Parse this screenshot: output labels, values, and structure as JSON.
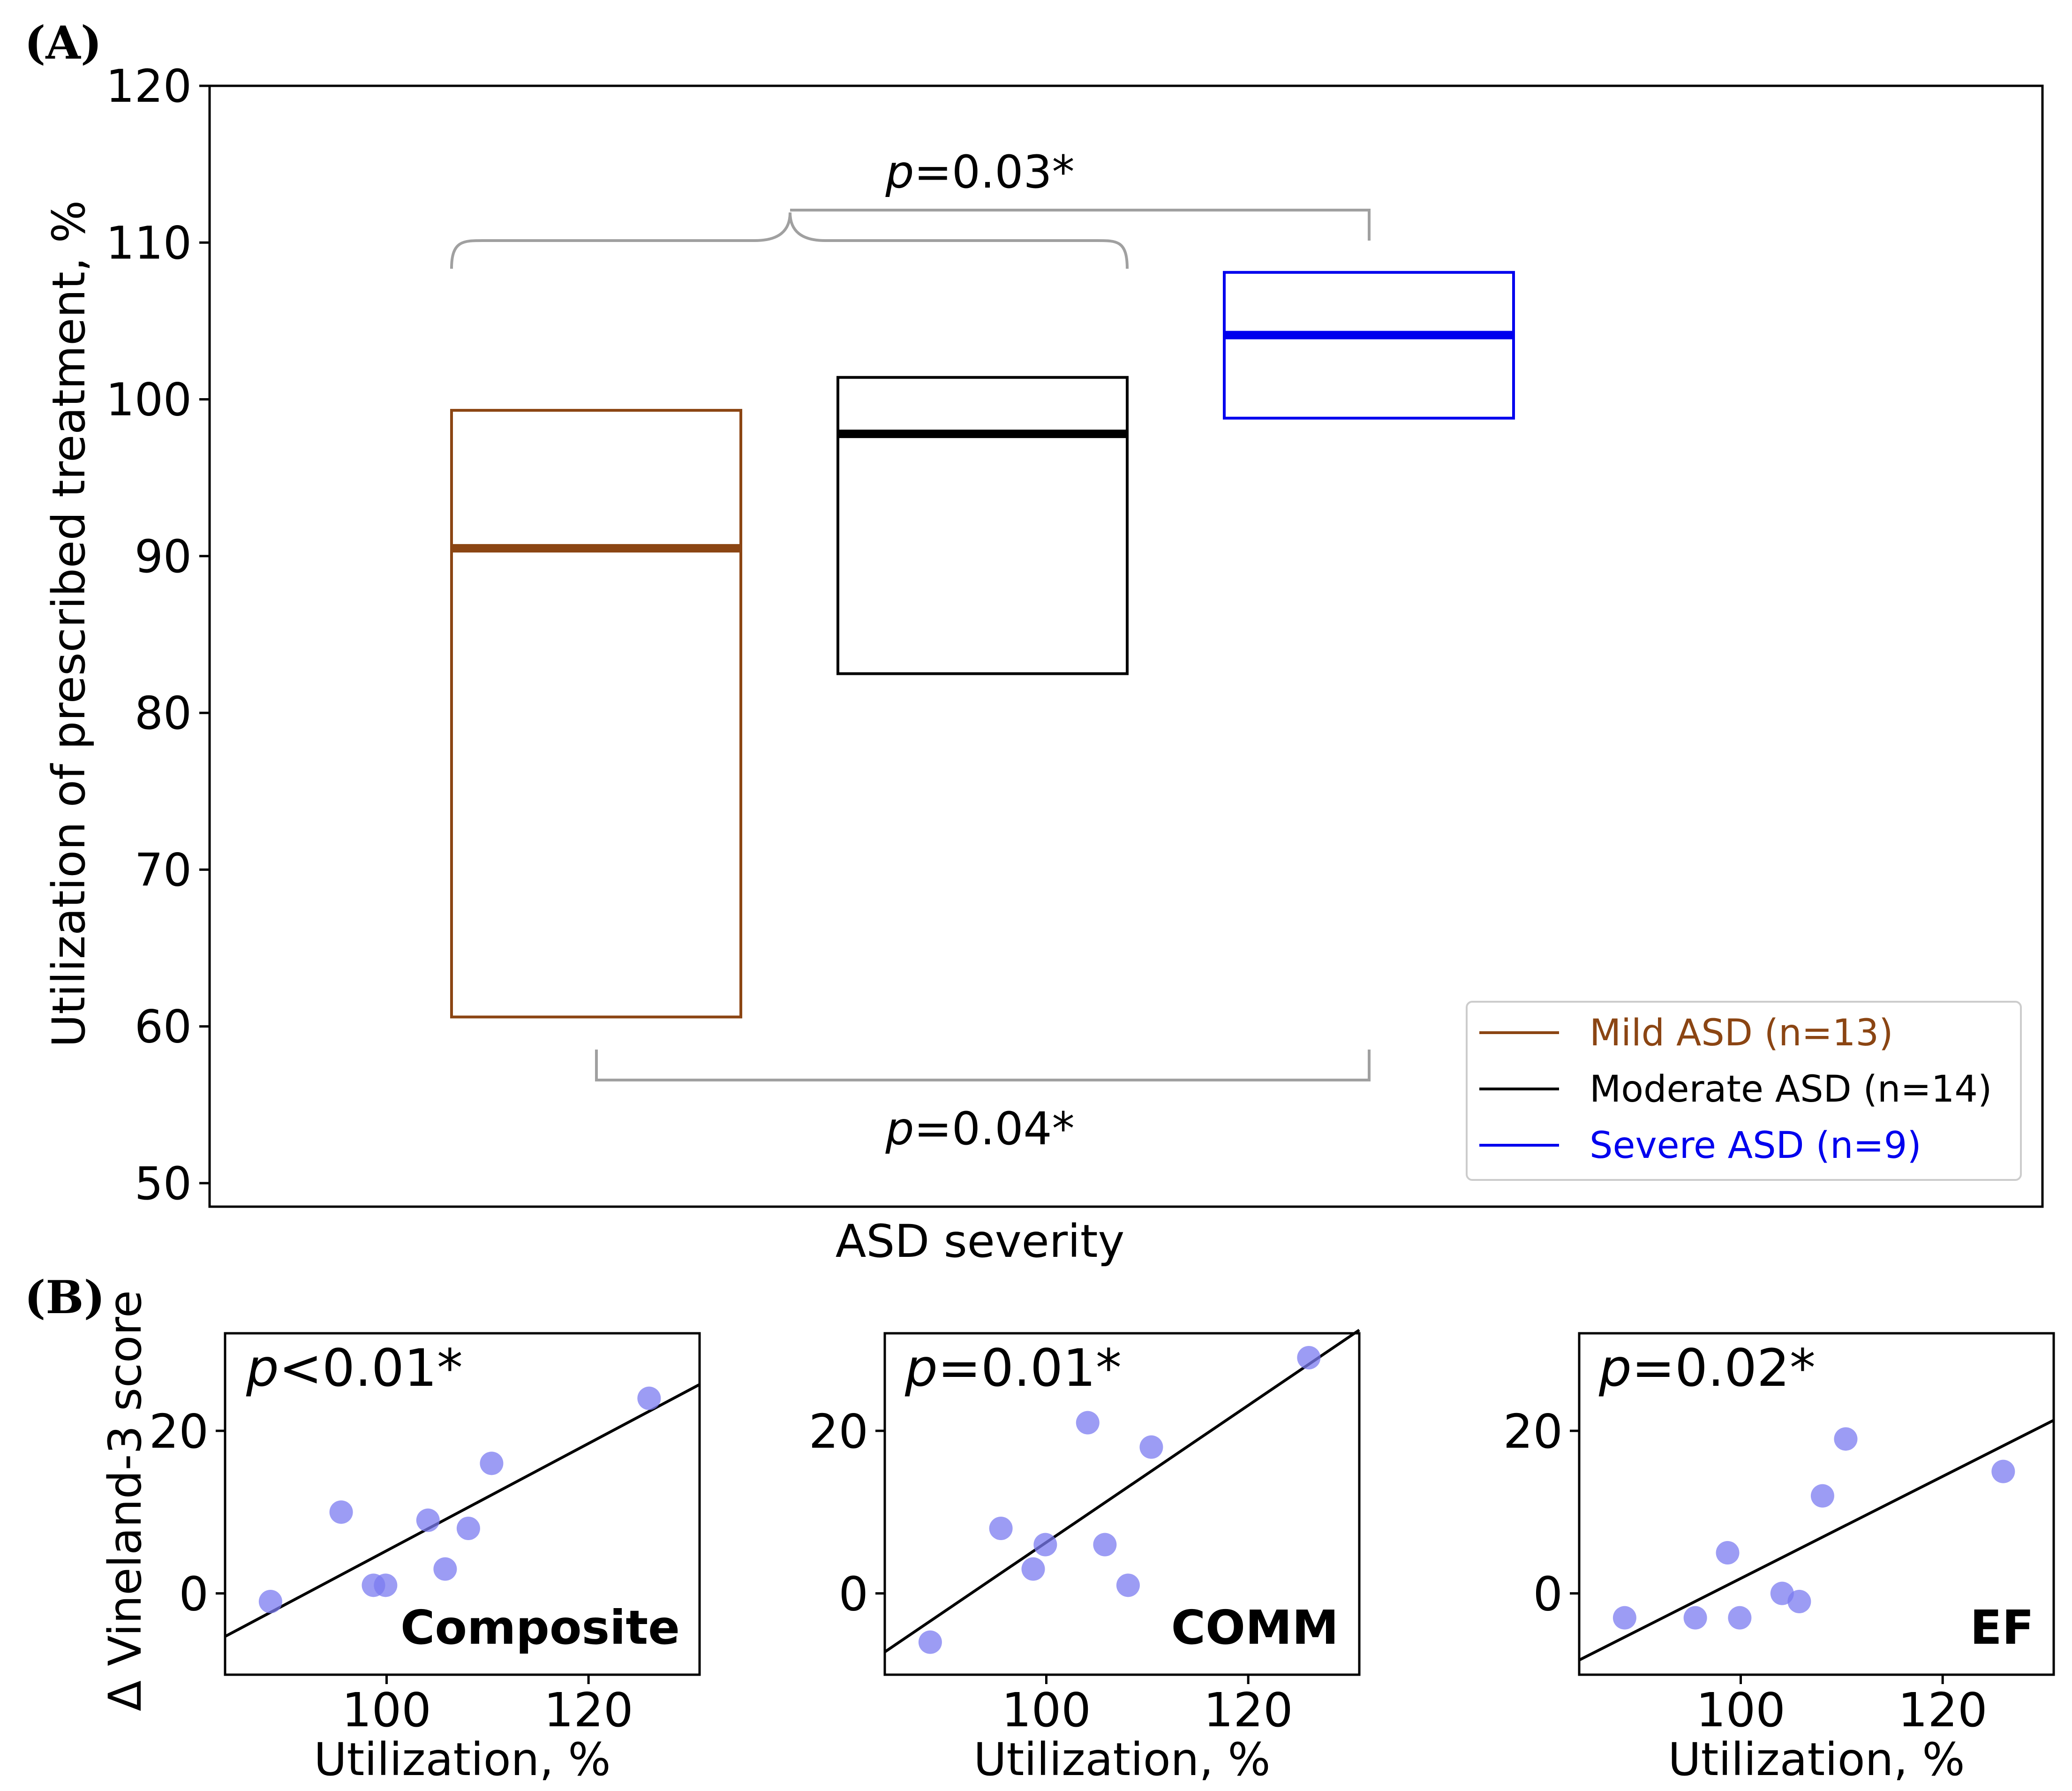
{
  "panel_a_label": "(A)",
  "panel_b_label": "(B)",
  "colors": {
    "mild": "#8B4513",
    "moderate": "#000000",
    "severe": "#0000EE",
    "bracket": "#A0A0A0",
    "scatter": "#7B7BF0"
  },
  "chart_data": [
    {
      "type": "box",
      "title": "",
      "xlabel": "ASD severity",
      "ylabel": "Utilization of prescribed treatment, %",
      "ylim": [
        48.5,
        120
      ],
      "yticks": [
        "120",
        "110",
        "100",
        "90",
        "80",
        "70",
        "60",
        "50"
      ],
      "ytick_values": [
        120,
        110,
        100,
        90,
        80,
        70,
        60,
        50
      ],
      "groups": [
        {
          "name": "Mild ASD (n=13)",
          "q1": 60.6,
          "median": 90.5,
          "q3": 99.3,
          "color_key": "mild"
        },
        {
          "name": "Moderate ASD (n=14)",
          "q1": 82.5,
          "median": 97.8,
          "q3": 101.4,
          "color_key": "moderate"
        },
        {
          "name": "Severe ASD (n=9)",
          "q1": 98.8,
          "median": 104.1,
          "q3": 108.1,
          "color_key": "severe"
        }
      ],
      "annotations": [
        {
          "p_label": "p",
          "p_value": "=0.03*",
          "compares": "Mild+Moderate vs Severe",
          "placement": "top"
        },
        {
          "p_label": "p",
          "p_value": "=0.04*",
          "compares": "Mild vs Severe",
          "placement": "bottom"
        }
      ],
      "legend": {
        "placement": "lower-right",
        "entries": [
          "Mild ASD (n=13)",
          "Moderate ASD (n=14)",
          "Severe ASD (n=9)"
        ]
      }
    },
    {
      "type": "scatter",
      "label": "Composite",
      "p_label": "p",
      "p_value": "<0.01*",
      "xlabel": "Utilization, %",
      "ylabel": "Δ Vineland-3 score",
      "xlim": [
        84,
        131
      ],
      "ylim": [
        -10,
        32
      ],
      "xticks": [
        "100",
        "120"
      ],
      "xtick_values": [
        100,
        120
      ],
      "yticks": [
        "20",
        "0"
      ],
      "ytick_values": [
        20,
        0
      ],
      "x": [
        88.5,
        95.5,
        98.7,
        99.9,
        104.1,
        105.8,
        108.1,
        110.4,
        126
      ],
      "y": [
        -1,
        10,
        1,
        1,
        9,
        3,
        8,
        16,
        24
      ],
      "fit": {
        "x0": 84,
        "y0": -5.3,
        "x1": 131,
        "y1": 25.7
      }
    },
    {
      "type": "scatter",
      "label": "COMM",
      "p_label": "p",
      "p_value": "=0.01*",
      "xlabel": "Utilization, %",
      "ylabel": "",
      "xlim": [
        84,
        131
      ],
      "ylim": [
        -10,
        32
      ],
      "xticks": [
        "100",
        "120"
      ],
      "xtick_values": [
        100,
        120
      ],
      "yticks": [
        "20",
        "0"
      ],
      "ytick_values": [
        20,
        0
      ],
      "x": [
        88.5,
        95.5,
        98.7,
        99.9,
        104.1,
        105.8,
        108.1,
        110.4,
        126
      ],
      "y": [
        -6,
        8,
        3,
        6,
        21,
        6,
        1,
        18,
        29
      ],
      "fit": {
        "x0": 84,
        "y0": -7.2,
        "x1": 131,
        "y1": 32.4
      }
    },
    {
      "type": "scatter",
      "label": "EF",
      "p_label": "p",
      "p_value": "=0.02*",
      "xlabel": "Utilization, %",
      "ylabel": "",
      "xlim": [
        84,
        131
      ],
      "ylim": [
        -10,
        32
      ],
      "xticks": [
        "100",
        "120"
      ],
      "xtick_values": [
        100,
        120
      ],
      "yticks": [
        "20",
        "0"
      ],
      "ytick_values": [
        20,
        0
      ],
      "x": [
        88.5,
        95.5,
        98.7,
        99.9,
        104.1,
        105.8,
        108.1,
        110.4,
        126
      ],
      "y": [
        -3,
        -3,
        5,
        -3,
        0,
        -1,
        12,
        19,
        15
      ],
      "fit": {
        "x0": 84,
        "y0": -8.2,
        "x1": 131,
        "y1": 21.3
      }
    }
  ]
}
